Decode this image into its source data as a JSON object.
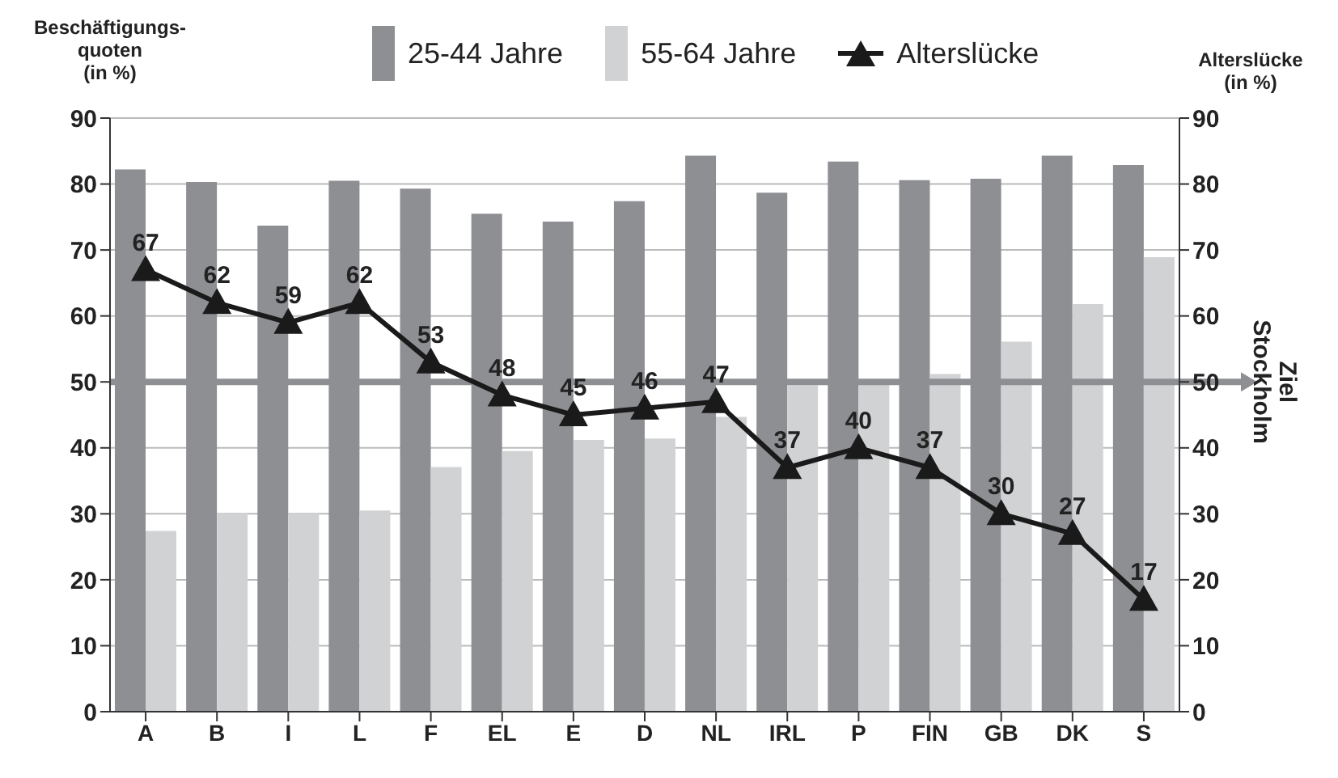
{
  "chart_data": {
    "type": "bar",
    "ylabel": "Beschäftigungs-\nquoten\n(in %)",
    "y2label": "Alterslücke\n(in %)",
    "categories": [
      "A",
      "B",
      "I",
      "L",
      "F",
      "EL",
      "E",
      "D",
      "NL",
      "IRL",
      "P",
      "FIN",
      "GB",
      "DK",
      "S"
    ],
    "series": [
      {
        "name": "25-44 Jahre",
        "color": "#8e8f93",
        "values": [
          82.2,
          80.3,
          73.7,
          80.5,
          79.3,
          75.5,
          74.3,
          77.4,
          84.3,
          78.7,
          83.4,
          80.6,
          80.8,
          84.3,
          82.9
        ]
      },
      {
        "name": "55-64 Jahre",
        "color": "#d1d2d4",
        "values": [
          27.4,
          30.1,
          30.1,
          30.5,
          37.1,
          39.5,
          41.2,
          41.4,
          44.7,
          49.5,
          50.2,
          51.2,
          56.1,
          61.8,
          68.9
        ]
      },
      {
        "name": "Alterslücke",
        "type": "line",
        "axis": "y2",
        "color": "#1a1a1a",
        "marker": "triangle",
        "data_labels": true,
        "values": [
          67,
          62,
          59,
          62,
          53,
          48,
          45,
          46,
          47,
          37,
          40,
          37,
          30,
          27,
          17
        ]
      }
    ],
    "ylim": [
      0,
      90
    ],
    "yticks": [
      0,
      10,
      20,
      30,
      40,
      50,
      60,
      70,
      80,
      90
    ],
    "y2lim": [
      0,
      90
    ],
    "y2ticks": [
      0,
      10,
      20,
      30,
      40,
      50,
      60,
      70,
      80,
      90
    ],
    "ref_lines": [
      {
        "axis": "y2",
        "value": 50,
        "label": "Ziel Stockholm",
        "color": "#8e8f93"
      }
    ],
    "grid": "y",
    "legend": "top"
  }
}
